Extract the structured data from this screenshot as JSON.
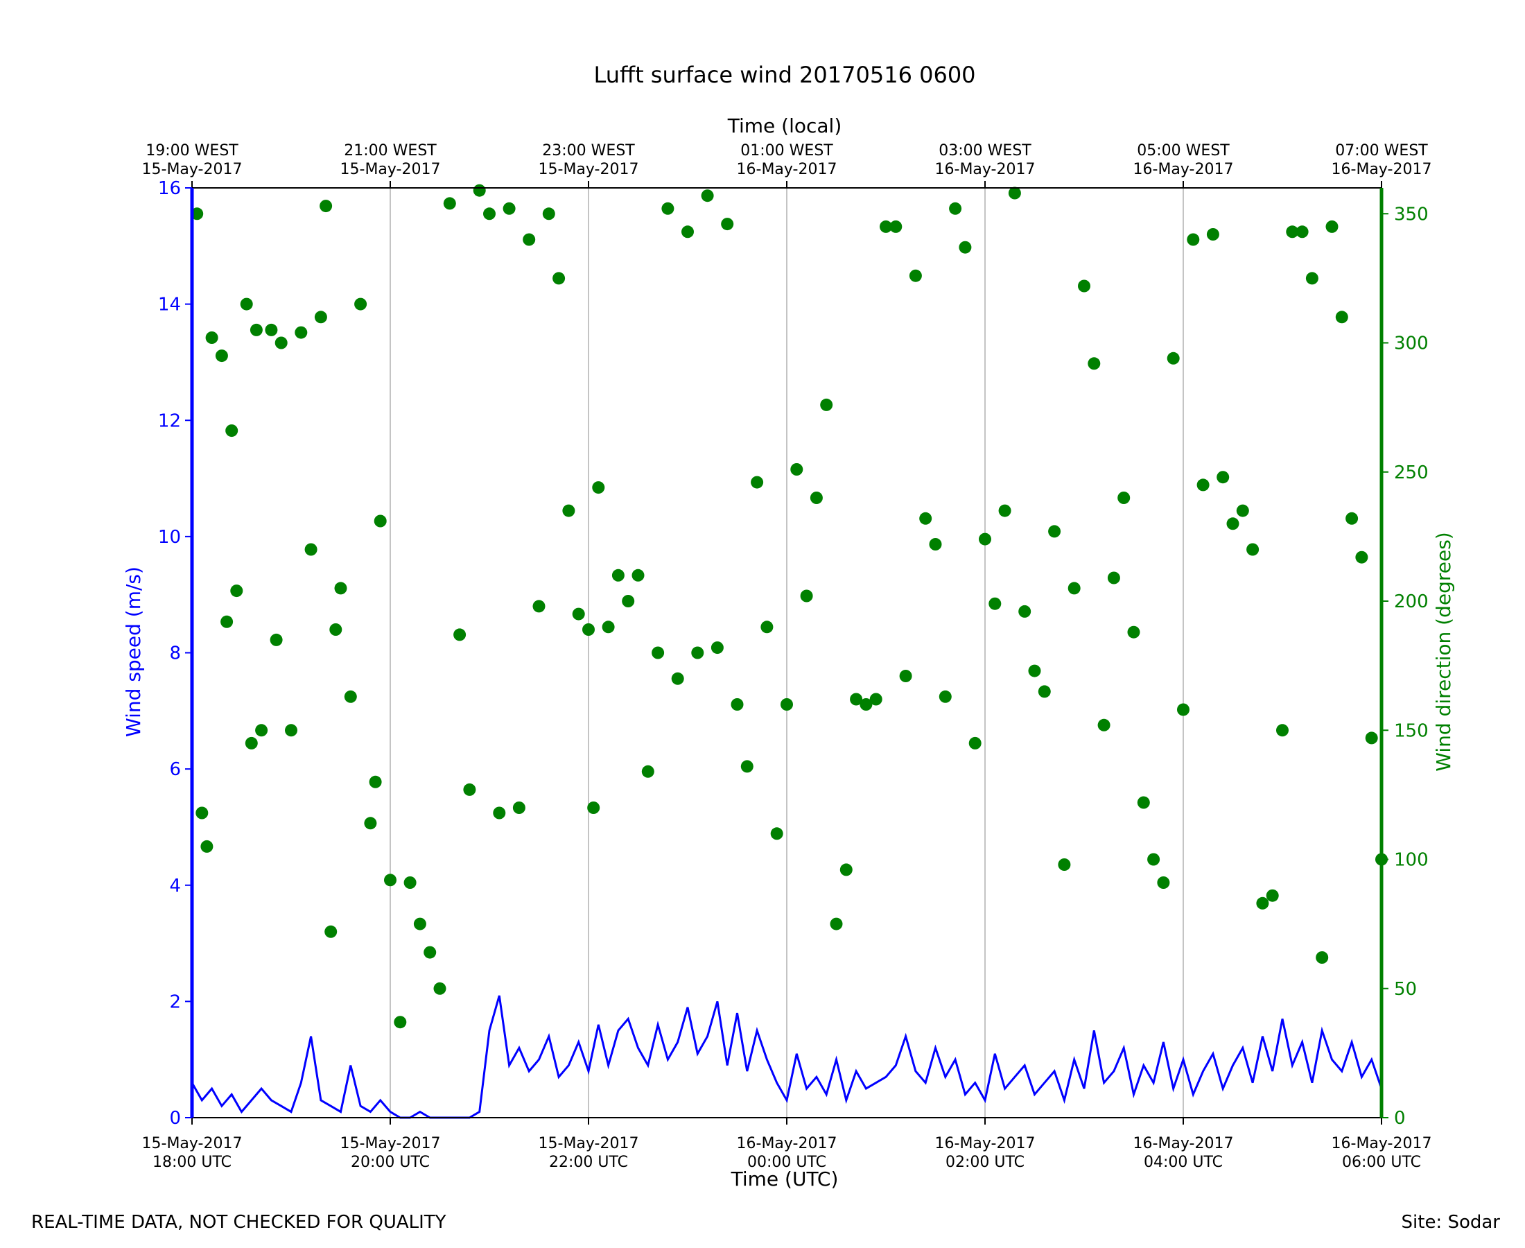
{
  "chart_data": {
    "type": "line+scatter",
    "title": "Lufft surface wind 20170516 0600",
    "xlabel_bottom": "Time (UTC)",
    "xlabel_top": "Time (local)",
    "ylabel_left": "Wind speed (m/s)",
    "ylabel_right": "Wind direction (degrees)",
    "x_range_utc_hours": [
      18,
      30
    ],
    "ylim_left": [
      0,
      16
    ],
    "ylim_right": [
      0,
      360
    ],
    "grid": "vertical",
    "colors": {
      "speed": "#0000ff",
      "direction": "#008000",
      "grid": "#b0b0b0"
    },
    "x_ticks_bottom": [
      {
        "x": 18,
        "line1": "15-May-2017",
        "line2": "18:00 UTC"
      },
      {
        "x": 20,
        "line1": "15-May-2017",
        "line2": "20:00 UTC"
      },
      {
        "x": 22,
        "line1": "15-May-2017",
        "line2": "22:00 UTC"
      },
      {
        "x": 24,
        "line1": "16-May-2017",
        "line2": "00:00 UTC"
      },
      {
        "x": 26,
        "line1": "16-May-2017",
        "line2": "02:00 UTC"
      },
      {
        "x": 28,
        "line1": "16-May-2017",
        "line2": "04:00 UTC"
      },
      {
        "x": 30,
        "line1": "16-May-2017",
        "line2": "06:00 UTC"
      }
    ],
    "x_ticks_top": [
      {
        "x": 18,
        "line1": "19:00 WEST",
        "line2": "15-May-2017"
      },
      {
        "x": 20,
        "line1": "21:00 WEST",
        "line2": "15-May-2017"
      },
      {
        "x": 22,
        "line1": "23:00 WEST",
        "line2": "15-May-2017"
      },
      {
        "x": 24,
        "line1": "01:00 WEST",
        "line2": "16-May-2017"
      },
      {
        "x": 26,
        "line1": "03:00 WEST",
        "line2": "16-May-2017"
      },
      {
        "x": 28,
        "line1": "05:00 WEST",
        "line2": "16-May-2017"
      },
      {
        "x": 30,
        "line1": "07:00 WEST",
        "line2": "16-May-2017"
      }
    ],
    "y_ticks_left": [
      "0",
      "2",
      "4",
      "6",
      "8",
      "10",
      "12",
      "14",
      "16"
    ],
    "y_ticks_right": [
      "0",
      "50",
      "100",
      "150",
      "200",
      "250",
      "300",
      "350"
    ],
    "wind_speed_series": {
      "x": [
        18.0,
        18.1,
        18.2,
        18.3,
        18.4,
        18.5,
        18.6,
        18.7,
        18.8,
        18.9,
        19.0,
        19.1,
        19.2,
        19.3,
        19.4,
        19.5,
        19.6,
        19.7,
        19.8,
        19.9,
        20.0,
        20.1,
        20.2,
        20.3,
        20.4,
        20.5,
        20.6,
        20.7,
        20.8,
        20.9,
        21.0,
        21.1,
        21.2,
        21.3,
        21.4,
        21.5,
        21.6,
        21.7,
        21.8,
        21.9,
        22.0,
        22.1,
        22.2,
        22.3,
        22.4,
        22.5,
        22.6,
        22.7,
        22.8,
        22.9,
        23.0,
        23.1,
        23.2,
        23.3,
        23.4,
        23.5,
        23.6,
        23.7,
        23.8,
        23.9,
        24.0,
        24.1,
        24.2,
        24.3,
        24.4,
        24.5,
        24.6,
        24.7,
        24.8,
        24.9,
        25.0,
        25.1,
        25.2,
        25.3,
        25.4,
        25.5,
        25.6,
        25.7,
        25.8,
        25.9,
        26.0,
        26.1,
        26.2,
        26.3,
        26.4,
        26.5,
        26.6,
        26.7,
        26.8,
        26.9,
        27.0,
        27.1,
        27.2,
        27.3,
        27.4,
        27.5,
        27.6,
        27.7,
        27.8,
        27.9,
        28.0,
        28.1,
        28.2,
        28.3,
        28.4,
        28.5,
        28.6,
        28.7,
        28.8,
        28.9,
        29.0,
        29.1,
        29.2,
        29.3,
        29.4,
        29.5,
        29.6,
        29.7,
        29.8,
        29.9,
        30.0
      ],
      "values": [
        0.6,
        0.3,
        0.5,
        0.2,
        0.4,
        0.1,
        0.3,
        0.5,
        0.3,
        0.2,
        0.1,
        0.6,
        1.4,
        0.3,
        0.2,
        0.1,
        0.9,
        0.2,
        0.1,
        0.3,
        0.1,
        0.0,
        0.0,
        0.1,
        0.0,
        0.0,
        0.0,
        0.0,
        0.0,
        0.1,
        1.5,
        2.1,
        0.9,
        1.2,
        0.8,
        1.0,
        1.4,
        0.7,
        0.9,
        1.3,
        0.8,
        1.6,
        0.9,
        1.5,
        1.7,
        1.2,
        0.9,
        1.6,
        1.0,
        1.3,
        1.9,
        1.1,
        1.4,
        2.0,
        0.9,
        1.8,
        0.8,
        1.5,
        1.0,
        0.6,
        0.3,
        1.1,
        0.5,
        0.7,
        0.4,
        1.0,
        0.3,
        0.8,
        0.5,
        0.6,
        0.7,
        0.9,
        1.4,
        0.8,
        0.6,
        1.2,
        0.7,
        1.0,
        0.4,
        0.6,
        0.3,
        1.1,
        0.5,
        0.7,
        0.9,
        0.4,
        0.6,
        0.8,
        0.3,
        1.0,
        0.5,
        1.5,
        0.6,
        0.8,
        1.2,
        0.4,
        0.9,
        0.6,
        1.3,
        0.5,
        1.0,
        0.4,
        0.8,
        1.1,
        0.5,
        0.9,
        1.2,
        0.6,
        1.4,
        0.8,
        1.7,
        0.9,
        1.3,
        0.6,
        1.5,
        1.0,
        0.8,
        1.3,
        0.7,
        1.0,
        0.5
      ]
    },
    "wind_direction_series": {
      "x": [
        18.05,
        18.1,
        18.15,
        18.2,
        18.3,
        18.35,
        18.4,
        18.45,
        18.55,
        18.6,
        18.65,
        18.7,
        18.8,
        18.85,
        18.9,
        19.0,
        19.1,
        19.2,
        19.3,
        19.35,
        19.4,
        19.45,
        19.5,
        19.6,
        19.7,
        19.8,
        19.85,
        19.9,
        20.0,
        20.1,
        20.2,
        20.3,
        20.4,
        20.5,
        20.6,
        20.7,
        20.8,
        20.9,
        21.0,
        21.1,
        21.2,
        21.3,
        21.4,
        21.5,
        21.6,
        21.7,
        21.8,
        21.9,
        22.0,
        22.05,
        22.1,
        22.2,
        22.3,
        22.4,
        22.5,
        22.6,
        22.7,
        22.8,
        22.9,
        23.0,
        23.1,
        23.2,
        23.3,
        23.4,
        23.5,
        23.6,
        23.7,
        23.8,
        23.9,
        24.0,
        24.1,
        24.2,
        24.3,
        24.4,
        24.5,
        24.6,
        24.7,
        24.8,
        24.9,
        25.0,
        25.1,
        25.2,
        25.3,
        25.4,
        25.5,
        25.6,
        25.7,
        25.8,
        25.9,
        26.0,
        26.1,
        26.2,
        26.3,
        26.4,
        26.5,
        26.6,
        26.7,
        26.8,
        26.9,
        27.0,
        27.1,
        27.2,
        27.3,
        27.4,
        27.5,
        27.6,
        27.7,
        27.8,
        27.9,
        28.0,
        28.1,
        28.2,
        28.3,
        28.4,
        28.5,
        28.6,
        28.7,
        28.8,
        28.9,
        29.0,
        29.1,
        29.2,
        29.3,
        29.4,
        29.5,
        29.6,
        29.7,
        29.8,
        29.9,
        30.0
      ],
      "values": [
        350,
        118,
        105,
        302,
        295,
        192,
        266,
        204,
        315,
        145,
        305,
        150,
        305,
        185,
        300,
        150,
        304,
        220,
        310,
        353,
        72,
        189,
        205,
        163,
        315,
        114,
        130,
        231,
        92,
        37,
        91,
        75,
        64,
        50,
        354,
        187,
        127,
        359,
        350,
        118,
        352,
        120,
        340,
        198,
        350,
        325,
        235,
        195,
        189,
        120,
        244,
        190,
        210,
        200,
        210,
        134,
        180,
        352,
        170,
        343,
        180,
        357,
        182,
        346,
        160,
        136,
        246,
        190,
        110,
        160,
        251,
        202,
        240,
        276,
        75,
        96,
        162,
        160,
        162,
        345,
        345,
        171,
        326,
        232,
        222,
        163,
        352,
        337,
        145,
        224,
        199,
        235,
        358,
        196,
        173,
        165,
        227,
        98,
        205,
        322,
        292,
        152,
        209,
        240,
        188,
        122,
        100,
        91,
        294,
        158,
        340,
        245,
        342,
        248,
        230,
        235,
        220,
        83,
        86,
        150,
        343,
        343,
        325,
        62,
        345,
        310,
        232,
        217,
        147,
        100
      ]
    }
  },
  "footer": {
    "left": "REAL-TIME DATA, NOT CHECKED FOR QUALITY",
    "right": "Site: Sodar"
  }
}
